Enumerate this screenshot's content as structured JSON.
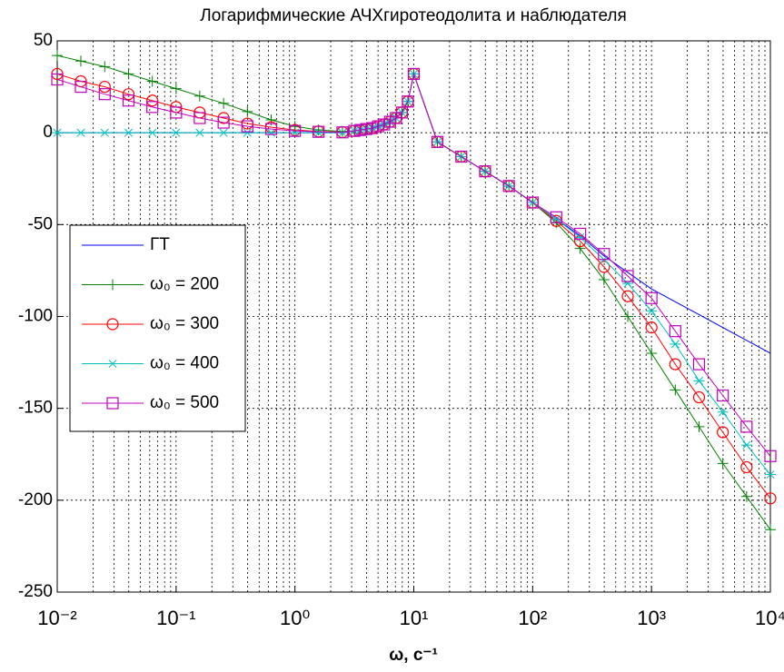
{
  "chart_data": {
    "type": "line",
    "title": "Логарифмические АЧХгиротеодолита и наблюдателя",
    "xlabel": "ω, c⁻¹",
    "xscale": "log",
    "grid": true,
    "minor_grid": true,
    "legend": "left",
    "xlim": [
      0.01,
      10000
    ],
    "xticks": [
      {
        "value": 0.01,
        "label": "10⁻²"
      },
      {
        "value": 0.1,
        "label": "10⁻¹"
      },
      {
        "value": 1,
        "label": "10⁰"
      },
      {
        "value": 10,
        "label": "10¹"
      },
      {
        "value": 100,
        "label": "10²"
      },
      {
        "value": 1000,
        "label": "10³"
      },
      {
        "value": 10000,
        "label": "10⁴"
      }
    ],
    "ylim": [
      -250,
      50
    ],
    "yticks": [
      -250,
      -200,
      -150,
      -100,
      -50,
      0,
      50
    ],
    "x": [
      0.01,
      0.0158,
      0.0251,
      0.0398,
      0.0631,
      0.1,
      0.158,
      0.251,
      0.398,
      0.631,
      1,
      1.58,
      2.51,
      3.16,
      3.55,
      3.98,
      4.47,
      5.01,
      5.62,
      6.31,
      7.08,
      7.94,
      8.91,
      10,
      15.8,
      25.1,
      39.8,
      63.1,
      100,
      158,
      251,
      398,
      631,
      1000,
      1585,
      2512,
      3981,
      6310,
      10000
    ],
    "series": [
      {
        "name": "ГТ",
        "color": "#0000ff",
        "marker": "none",
        "values": [
          0,
          0,
          0,
          0,
          0,
          0,
          0,
          0,
          0,
          0,
          0,
          0,
          0,
          1,
          1.5,
          2,
          2.5,
          3.5,
          4.5,
          6,
          8,
          11,
          17,
          32,
          -5,
          -13,
          -21,
          -29,
          -38,
          -47,
          -56,
          -67,
          -76,
          -85,
          -92,
          -99,
          -106,
          -113,
          -120
        ]
      },
      {
        "name": "ω₀ = 200",
        "color": "#008000",
        "marker": "plus",
        "values": [
          42,
          39,
          36,
          32,
          28,
          24,
          20,
          16,
          11.5,
          7,
          3.5,
          1.5,
          0.7,
          1,
          1.5,
          2,
          2.5,
          3.5,
          4.5,
          6,
          8,
          11,
          17,
          32,
          -5,
          -13,
          -21,
          -29,
          -38,
          -49,
          -63,
          -80,
          -100,
          -120,
          -140,
          -160,
          -180,
          -198,
          -216
        ]
      },
      {
        "name": "ω₀ = 300",
        "color": "#ff0000",
        "marker": "circle",
        "values": [
          32,
          28,
          25,
          21,
          17.5,
          14,
          11,
          8,
          5,
          3,
          1.5,
          0.7,
          0.3,
          1,
          1.5,
          2,
          2.5,
          3.5,
          4.5,
          6,
          8,
          11,
          17,
          32,
          -5,
          -13,
          -21,
          -29,
          -38,
          -48,
          -59,
          -73,
          -89,
          -106,
          -126,
          -144,
          -163,
          -182,
          -199
        ]
      },
      {
        "name": "ω₀ = 400",
        "color": "#00bfbf",
        "marker": "star",
        "values": [
          0,
          0,
          0,
          0,
          0,
          0,
          0,
          0,
          0,
          0,
          0,
          0,
          0,
          1,
          1.5,
          2,
          2.5,
          3.5,
          4.5,
          6,
          8,
          11,
          17,
          32,
          -5,
          -13,
          -21,
          -29,
          -38,
          -47,
          -57,
          -69,
          -82,
          -97,
          -115,
          -135,
          -152,
          -170,
          -186
        ]
      },
      {
        "name": "ω₀ = 500",
        "color": "#bf00bf",
        "marker": "square",
        "values": [
          29,
          25,
          21,
          17.5,
          14,
          11,
          8,
          5.5,
          3.5,
          2,
          1,
          0.5,
          0.2,
          1,
          1.5,
          2,
          2.5,
          3.5,
          4.5,
          6,
          8,
          11,
          17,
          32,
          -5,
          -13,
          -21,
          -29,
          -38,
          -46,
          -55,
          -66,
          -78,
          -90,
          -108,
          -126,
          -143,
          -160,
          -176
        ]
      }
    ]
  }
}
